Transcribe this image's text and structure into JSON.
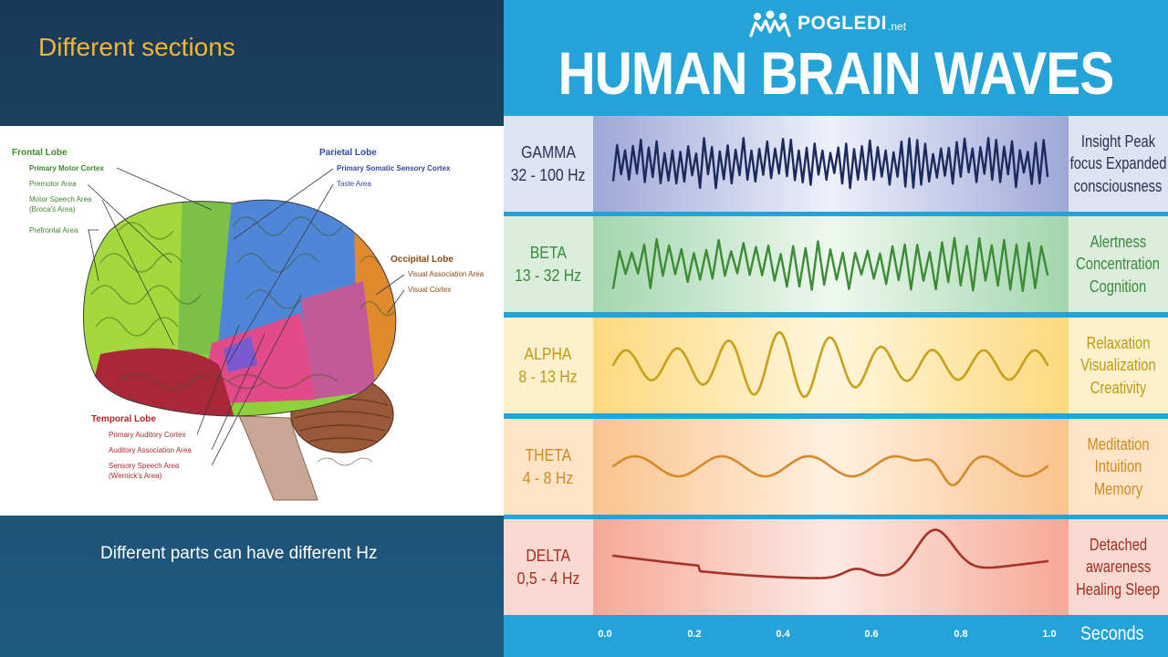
{
  "left": {
    "title": "Different sections",
    "caption": "Different parts can have different Hz",
    "brain_labels": {
      "frontal_lobe": "Frontal Lobe",
      "primary_motor_cortex": "Primary Motor Cortex",
      "premotor_area": "Premotor Area",
      "motor_speech_area": "Motor Speech Area",
      "brocas_area": "(Broca's Area)",
      "prefrontal_area": "Prefrontal Area",
      "parietal_lobe": "Parietal Lobe",
      "primary_somatic_sensory_cortex": "Primary Somatic Sensory Cortex",
      "taste_area": "Taste Area",
      "occipital_lobe": "Occipital Lobe",
      "visual_association_area": "Visual Association Area",
      "visual_cortex": "Visual Cortex",
      "temporal_lobe": "Temporal Lobe",
      "primary_auditory_cortex": "Primary Auditory Cortex",
      "auditory_association_area": "Auditory Association Area",
      "sensory_speech_area": "Sensory Speech Area",
      "wernickes_area": "(Wernick's Area)"
    }
  },
  "right": {
    "brand": {
      "name": "POGLEDI",
      "suffix": ".net",
      "icon": "people-group-icon"
    },
    "heading": "HUMAN BRAIN WAVES",
    "bands": [
      {
        "name": "GAMMA",
        "range": "32 - 100 Hz",
        "desc": [
          "Insight Peak",
          "focus Expanded",
          "consciousness"
        ],
        "wave_color": "#1a2a5c"
      },
      {
        "name": "BETA",
        "range": "13 - 32 Hz",
        "desc": [
          "Alertness",
          "Concentration",
          "Cognition"
        ],
        "wave_color": "#3b8c35"
      },
      {
        "name": "ALPHA",
        "range": "8 - 13 Hz",
        "desc": [
          "Relaxation",
          "Visualization",
          "Creativity"
        ],
        "wave_color": "#c9a018"
      },
      {
        "name": "THETA",
        "range": "4 - 8 Hz",
        "desc": [
          "Meditation",
          "Intuition",
          "Memory"
        ],
        "wave_color": "#d68a2a"
      },
      {
        "name": "DELTA",
        "range": "0,5 - 4 Hz",
        "desc": [
          "Detached",
          "awareness",
          "Healing Sleep"
        ],
        "wave_color": "#a83226"
      }
    ],
    "time_axis": {
      "ticks": [
        "0.0",
        "0.2",
        "0.4",
        "0.6",
        "0.8",
        "1.0"
      ],
      "label": "Seconds"
    }
  }
}
